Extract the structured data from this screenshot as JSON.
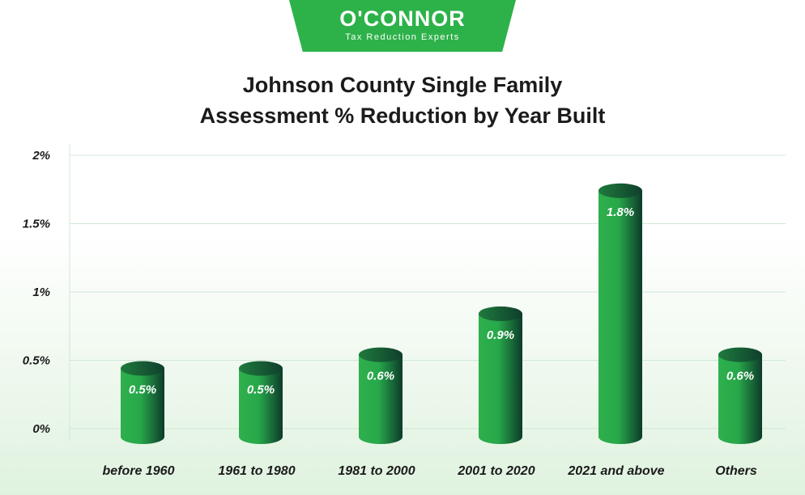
{
  "brand": {
    "name": "O'CONNOR",
    "tagline": "Tax Reduction Experts",
    "color": "#2db24a"
  },
  "chart_data": {
    "type": "bar",
    "title": "Johnson County Single Family Assessment % Reduction by Year Built",
    "title_lines": [
      "Johnson County Single Family",
      "Assessment % Reduction by Year Built"
    ],
    "categories": [
      "before 1960",
      "1961 to 1980",
      "1981 to 2000",
      "2001 to 2020",
      "2021 and above",
      "Others"
    ],
    "values": [
      0.5,
      0.5,
      0.6,
      0.9,
      1.8,
      0.6
    ],
    "data_labels": [
      "0.5%",
      "0.5%",
      "0.6%",
      "0.9%",
      "1.8%",
      "0.6%"
    ],
    "y_ticks": [
      "0%",
      "0.5%",
      "1%",
      "1.5%",
      "2%"
    ],
    "ylim": [
      0,
      2
    ],
    "xlabel": "",
    "ylabel": "",
    "grid": true,
    "legend": "none",
    "bar_style": "cylinder",
    "colors": {
      "bar_light": "#27a84a",
      "bar_dark": "#0d3b2a",
      "grid": "#cfe8d6"
    }
  }
}
